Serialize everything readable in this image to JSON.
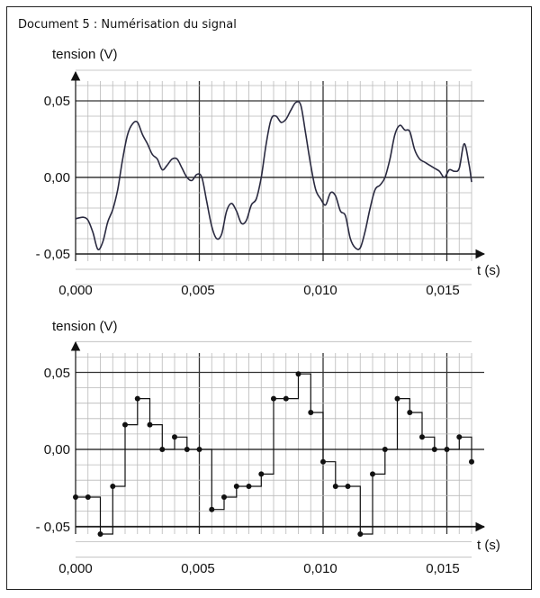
{
  "document_title": "Document 5 : Numérisation du signal",
  "chart_data": [
    {
      "type": "line",
      "ylabel": "tension (V)",
      "xlabel": "t (s)",
      "xlim": [
        0,
        0.016
      ],
      "ylim": [
        -0.05,
        0.05
      ],
      "x_tick_labels": [
        "0,000",
        "0,005",
        "0,010",
        "0,015"
      ],
      "y_tick_labels": [
        "0,05",
        "0,00",
        "- 0,05"
      ],
      "grid": true,
      "series": [
        {
          "x": [
            0,
            0.0003,
            0.0005,
            0.0007,
            0.0009,
            0.0011,
            0.0013,
            0.0015,
            0.0017,
            0.0019,
            0.0021,
            0.0023,
            0.0025,
            0.0027,
            0.0029,
            0.0031,
            0.0033,
            0.0035,
            0.0037,
            0.0039,
            0.0041,
            0.0043,
            0.0045,
            0.0047,
            0.0049,
            0.0051,
            0.0053,
            0.0055,
            0.0057,
            0.0059,
            0.0061,
            0.0063,
            0.0065,
            0.0067,
            0.0069,
            0.0071,
            0.0073,
            0.0075,
            0.0077,
            0.0079,
            0.0081,
            0.0083,
            0.0085,
            0.0087,
            0.0089,
            0.0091,
            0.0093,
            0.0095,
            0.0097,
            0.0099,
            0.0101,
            0.0103,
            0.0105,
            0.0107,
            0.0109,
            0.0111,
            0.0113,
            0.0115,
            0.0117,
            0.0119,
            0.0121,
            0.0123,
            0.0125,
            0.0127,
            0.0129,
            0.0131,
            0.0133,
            0.0135,
            0.0137,
            0.0139,
            0.0141,
            0.0143,
            0.0145,
            0.0147,
            0.0149,
            0.0151,
            0.0153,
            0.0155,
            0.0157,
            0.0159,
            0.016
          ],
          "y": [
            -0.027,
            -0.026,
            -0.028,
            -0.036,
            -0.047,
            -0.042,
            -0.029,
            -0.021,
            -0.008,
            0.012,
            0.028,
            0.035,
            0.036,
            0.028,
            0.022,
            0.015,
            0.012,
            0.005,
            0.008,
            0.012,
            0.012,
            0.006,
            0.0,
            -0.002,
            0.002,
            0.0,
            -0.016,
            -0.032,
            -0.04,
            -0.037,
            -0.022,
            -0.017,
            -0.022,
            -0.03,
            -0.028,
            -0.018,
            -0.014,
            0.0,
            0.022,
            0.038,
            0.04,
            0.036,
            0.038,
            0.044,
            0.049,
            0.047,
            0.028,
            0.008,
            -0.008,
            -0.014,
            -0.018,
            -0.01,
            -0.012,
            -0.022,
            -0.025,
            -0.04,
            -0.046,
            -0.046,
            -0.035,
            -0.02,
            -0.008,
            -0.005,
            0.0,
            0.012,
            0.028,
            0.034,
            0.031,
            0.03,
            0.018,
            0.012,
            0.01,
            0.008,
            0.006,
            0.004,
            0.0,
            0.005,
            0.004,
            0.006,
            0.022,
            0.008,
            -0.003
          ]
        }
      ]
    },
    {
      "type": "line",
      "ylabel": "tension (V)",
      "xlabel": "t (s)",
      "xlim": [
        0,
        0.016
      ],
      "ylim": [
        -0.05,
        0.05
      ],
      "x_tick_labels": [
        "0,000",
        "0,005",
        "0,010",
        "0,015"
      ],
      "y_tick_labels": [
        "0,05",
        "0,00",
        "- 0,05"
      ],
      "grid": true,
      "sample_period": 0.0005,
      "series": [
        {
          "x": [
            0,
            0.0005,
            0.001,
            0.0015,
            0.002,
            0.0025,
            0.003,
            0.0035,
            0.004,
            0.0045,
            0.005,
            0.0055,
            0.006,
            0.0065,
            0.007,
            0.0075,
            0.008,
            0.0085,
            0.009,
            0.0095,
            0.01,
            0.0105,
            0.011,
            0.0115,
            0.012,
            0.0125,
            0.013,
            0.0135,
            0.014,
            0.0145,
            0.015,
            0.0155,
            0.016
          ],
          "y": [
            -0.031,
            -0.031,
            -0.055,
            -0.024,
            0.016,
            0.033,
            0.016,
            0.0,
            0.008,
            0.0,
            0.0,
            -0.039,
            -0.031,
            -0.024,
            -0.024,
            -0.016,
            0.033,
            0.033,
            0.049,
            0.024,
            -0.008,
            -0.024,
            -0.024,
            -0.055,
            -0.016,
            0.0,
            0.033,
            0.024,
            0.008,
            0.0,
            0.0,
            0.008,
            -0.008
          ]
        }
      ]
    }
  ]
}
